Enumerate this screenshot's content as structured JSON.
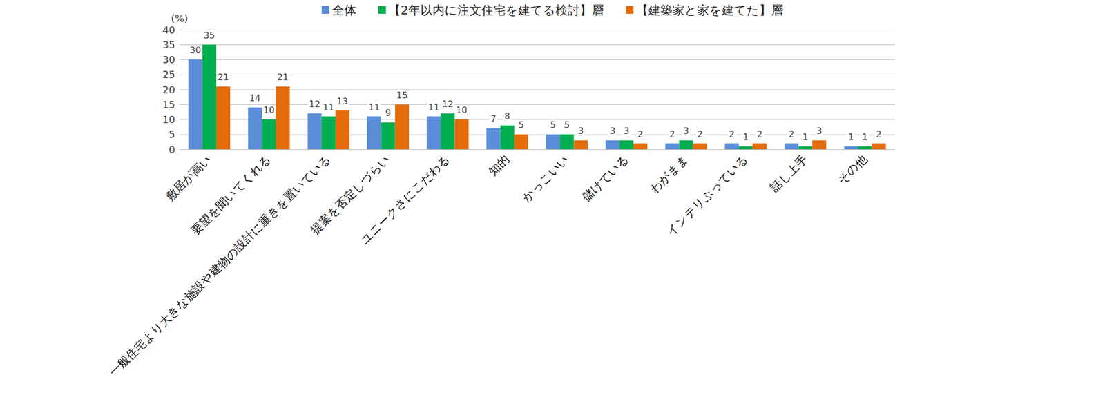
{
  "chart_data": {
    "type": "bar",
    "ylabel": "(%)",
    "categories": [
      "敷居が高い",
      "要望を聞いてくれる",
      "一般住宅より大きな施設や建物の設計に重きを置いている",
      "提案を否定しづらい",
      "ユニークさにこだわる",
      "知的",
      "かっこいい",
      "儲けている",
      "わがまま",
      "インテリぶっている",
      "話し上手",
      "その他"
    ],
    "series": [
      {
        "name": "全体",
        "color": "#5b8dd9",
        "values": [
          30,
          14,
          12,
          11,
          11,
          7,
          5,
          3,
          2,
          2,
          2,
          1
        ]
      },
      {
        "name": "【2年以内に注文住宅を建てる検討】層",
        "color": "#00b050",
        "values": [
          35,
          10,
          11,
          9,
          12,
          8,
          5,
          3,
          3,
          1,
          1,
          1
        ]
      },
      {
        "name": "【建築家と家を建てた】層",
        "color": "#e46c0a",
        "values": [
          21,
          21,
          13,
          15,
          10,
          5,
          3,
          2,
          2,
          2,
          3,
          2
        ]
      }
    ],
    "ylim": [
      0,
      40
    ],
    "yticks": [
      0,
      5,
      10,
      15,
      20,
      25,
      30,
      35,
      40
    ],
    "grid": true,
    "legend": "top",
    "data_labels": true
  }
}
